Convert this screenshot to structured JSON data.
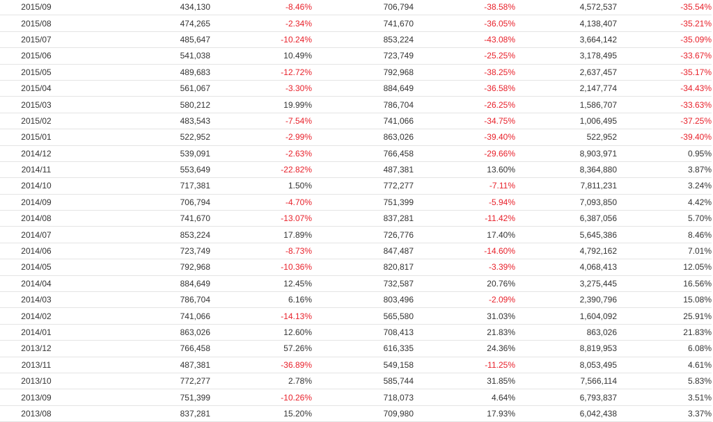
{
  "colors": {
    "text": "#333333",
    "negative": "#e8202a",
    "row_border": "#e4e4e4"
  },
  "rows": [
    {
      "month": "2015/09",
      "a": "434,130",
      "b": "-8.46%",
      "c": "706,794",
      "d": "-38.58%",
      "e": "4,572,537",
      "f": "-35.54%"
    },
    {
      "month": "2015/08",
      "a": "474,265",
      "b": "-2.34%",
      "c": "741,670",
      "d": "-36.05%",
      "e": "4,138,407",
      "f": "-35.21%"
    },
    {
      "month": "2015/07",
      "a": "485,647",
      "b": "-10.24%",
      "c": "853,224",
      "d": "-43.08%",
      "e": "3,664,142",
      "f": "-35.09%"
    },
    {
      "month": "2015/06",
      "a": "541,038",
      "b": "10.49%",
      "c": "723,749",
      "d": "-25.25%",
      "e": "3,178,495",
      "f": "-33.67%"
    },
    {
      "month": "2015/05",
      "a": "489,683",
      "b": "-12.72%",
      "c": "792,968",
      "d": "-38.25%",
      "e": "2,637,457",
      "f": "-35.17%"
    },
    {
      "month": "2015/04",
      "a": "561,067",
      "b": "-3.30%",
      "c": "884,649",
      "d": "-36.58%",
      "e": "2,147,774",
      "f": "-34.43%"
    },
    {
      "month": "2015/03",
      "a": "580,212",
      "b": "19.99%",
      "c": "786,704",
      "d": "-26.25%",
      "e": "1,586,707",
      "f": "-33.63%"
    },
    {
      "month": "2015/02",
      "a": "483,543",
      "b": "-7.54%",
      "c": "741,066",
      "d": "-34.75%",
      "e": "1,006,495",
      "f": "-37.25%"
    },
    {
      "month": "2015/01",
      "a": "522,952",
      "b": "-2.99%",
      "c": "863,026",
      "d": "-39.40%",
      "e": "522,952",
      "f": "-39.40%"
    },
    {
      "month": "2014/12",
      "a": "539,091",
      "b": "-2.63%",
      "c": "766,458",
      "d": "-29.66%",
      "e": "8,903,971",
      "f": "0.95%"
    },
    {
      "month": "2014/11",
      "a": "553,649",
      "b": "-22.82%",
      "c": "487,381",
      "d": "13.60%",
      "e": "8,364,880",
      "f": "3.87%"
    },
    {
      "month": "2014/10",
      "a": "717,381",
      "b": "1.50%",
      "c": "772,277",
      "d": "-7.11%",
      "e": "7,811,231",
      "f": "3.24%"
    },
    {
      "month": "2014/09",
      "a": "706,794",
      "b": "-4.70%",
      "c": "751,399",
      "d": "-5.94%",
      "e": "7,093,850",
      "f": "4.42%"
    },
    {
      "month": "2014/08",
      "a": "741,670",
      "b": "-13.07%",
      "c": "837,281",
      "d": "-11.42%",
      "e": "6,387,056",
      "f": "5.70%"
    },
    {
      "month": "2014/07",
      "a": "853,224",
      "b": "17.89%",
      "c": "726,776",
      "d": "17.40%",
      "e": "5,645,386",
      "f": "8.46%"
    },
    {
      "month": "2014/06",
      "a": "723,749",
      "b": "-8.73%",
      "c": "847,487",
      "d": "-14.60%",
      "e": "4,792,162",
      "f": "7.01%"
    },
    {
      "month": "2014/05",
      "a": "792,968",
      "b": "-10.36%",
      "c": "820,817",
      "d": "-3.39%",
      "e": "4,068,413",
      "f": "12.05%"
    },
    {
      "month": "2014/04",
      "a": "884,649",
      "b": "12.45%",
      "c": "732,587",
      "d": "20.76%",
      "e": "3,275,445",
      "f": "16.56%"
    },
    {
      "month": "2014/03",
      "a": "786,704",
      "b": "6.16%",
      "c": "803,496",
      "d": "-2.09%",
      "e": "2,390,796",
      "f": "15.08%"
    },
    {
      "month": "2014/02",
      "a": "741,066",
      "b": "-14.13%",
      "c": "565,580",
      "d": "31.03%",
      "e": "1,604,092",
      "f": "25.91%"
    },
    {
      "month": "2014/01",
      "a": "863,026",
      "b": "12.60%",
      "c": "708,413",
      "d": "21.83%",
      "e": "863,026",
      "f": "21.83%"
    },
    {
      "month": "2013/12",
      "a": "766,458",
      "b": "57.26%",
      "c": "616,335",
      "d": "24.36%",
      "e": "8,819,953",
      "f": "6.08%"
    },
    {
      "month": "2013/11",
      "a": "487,381",
      "b": "-36.89%",
      "c": "549,158",
      "d": "-11.25%",
      "e": "8,053,495",
      "f": "4.61%"
    },
    {
      "month": "2013/10",
      "a": "772,277",
      "b": "2.78%",
      "c": "585,744",
      "d": "31.85%",
      "e": "7,566,114",
      "f": "5.83%"
    },
    {
      "month": "2013/09",
      "a": "751,399",
      "b": "-10.26%",
      "c": "718,073",
      "d": "4.64%",
      "e": "6,793,837",
      "f": "3.51%"
    },
    {
      "month": "2013/08",
      "a": "837,281",
      "b": "15.20%",
      "c": "709,980",
      "d": "17.93%",
      "e": "6,042,438",
      "f": "3.37%"
    }
  ]
}
